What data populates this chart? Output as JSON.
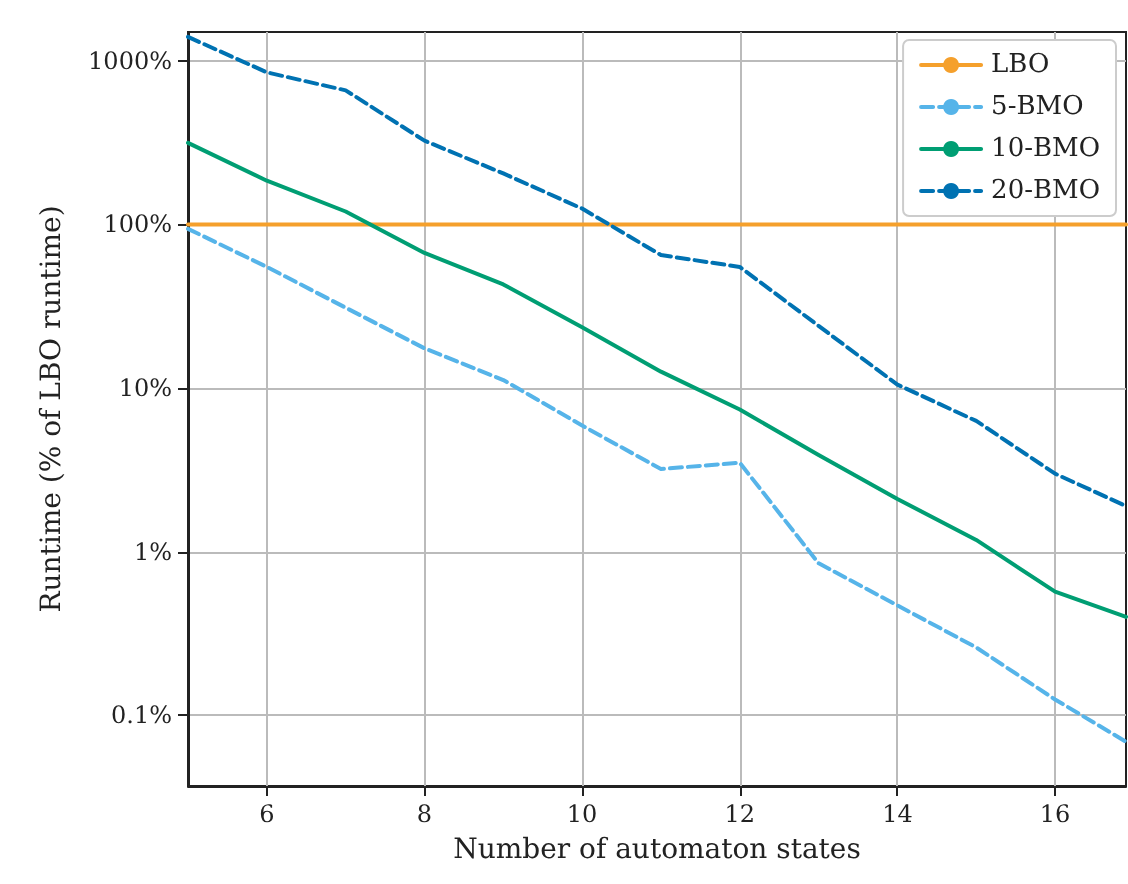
{
  "chart_data": {
    "type": "line",
    "xlabel": "Number of automaton states",
    "ylabel": "Runtime (% of LBO runtime)",
    "log": "y",
    "grid": true,
    "legend": "top right",
    "marker": "none",
    "xlim": [
      5,
      16.9
    ],
    "xticks": [
      6,
      8,
      10,
      12,
      14,
      16
    ],
    "ylim": [
      0.037,
      1500
    ],
    "yticks": [
      {
        "value": 0.1,
        "label": "0.1%"
      },
      {
        "value": 1,
        "label": "1%"
      },
      {
        "value": 10,
        "label": "10%"
      },
      {
        "value": 100,
        "label": "100%"
      },
      {
        "value": 1000,
        "label": "1000%"
      }
    ],
    "x": [
      5,
      6,
      7,
      8,
      9,
      10,
      11,
      12,
      13,
      14,
      15,
      16,
      16.9
    ],
    "series": [
      {
        "name": "LBO",
        "color": "#f5a02c",
        "line_style": "solid",
        "values": [
          100,
          100,
          100,
          100,
          100,
          100,
          100,
          100,
          100,
          100,
          100,
          100,
          100
        ]
      },
      {
        "name": "5-BMO",
        "color": "#56b4e9",
        "line_style": "dashed",
        "values": [
          94,
          55,
          31,
          17.5,
          11.2,
          5.9,
          3.2,
          3.5,
          0.85,
          0.47,
          0.26,
          0.125,
          0.069
        ]
      },
      {
        "name": "10-BMO",
        "color": "#009e73",
        "line_style": "solid",
        "values": [
          315,
          185,
          120,
          67,
          43,
          23.5,
          12.6,
          7.4,
          3.9,
          2.1,
          1.18,
          0.57,
          0.4
        ]
      },
      {
        "name": "20-BMO",
        "color": "#0072b2",
        "line_style": "dashed",
        "values": [
          1400,
          850,
          660,
          325,
          205,
          125,
          65,
          55,
          24,
          10.5,
          6.3,
          3.0,
          1.9
        ]
      }
    ]
  }
}
